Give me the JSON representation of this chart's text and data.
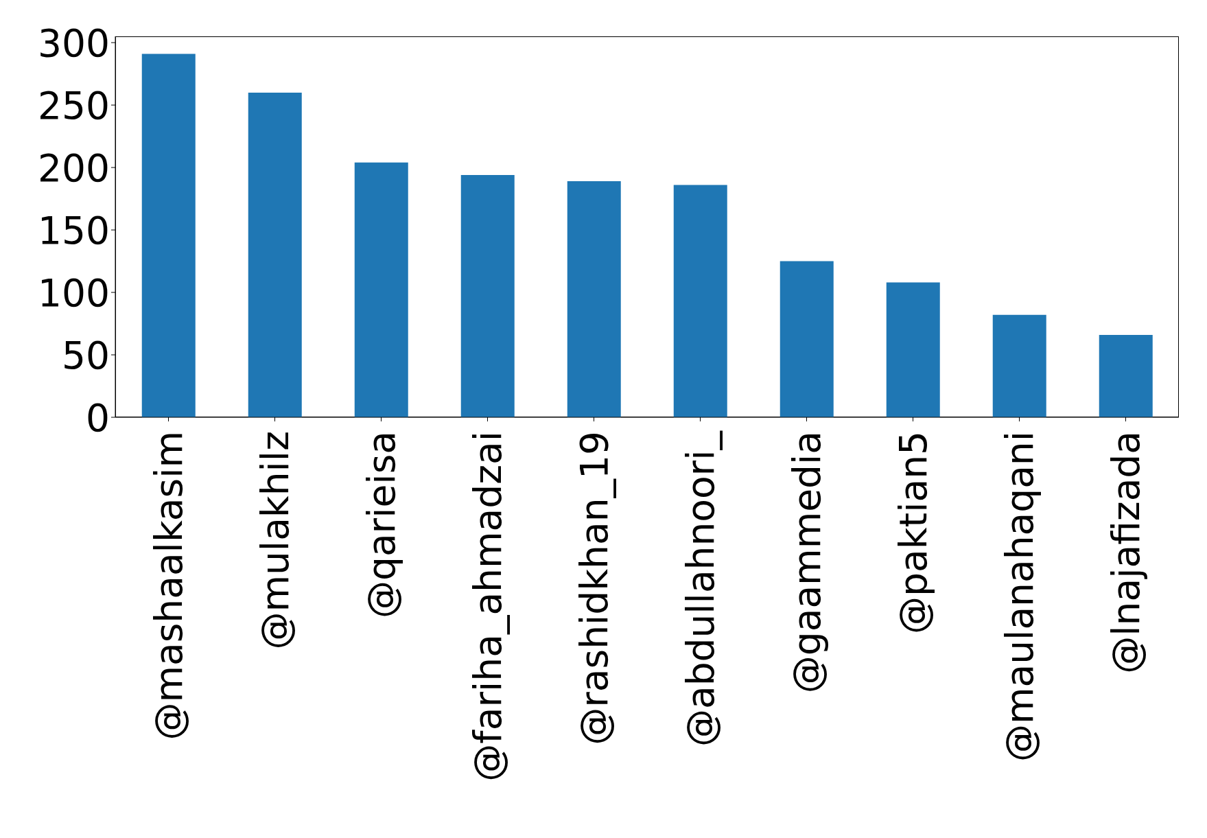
{
  "chart_data": {
    "type": "bar",
    "categories": [
      "@mashaalkasim",
      "@mulakhilz",
      "@qarieisa",
      "@fariha_ahmadzai",
      "@rashidkhan_19",
      "@abdullahnoori_",
      "@gaammedia",
      "@paktian5",
      "@maulanahaqani",
      "@lnajafizada"
    ],
    "values": [
      291,
      260,
      204,
      194,
      189,
      186,
      125,
      108,
      82,
      66
    ],
    "color": "#1f77b4",
    "ylim": [
      0,
      305
    ],
    "yticks": [
      0,
      50,
      100,
      150,
      200,
      250,
      300
    ],
    "grid": false
  }
}
